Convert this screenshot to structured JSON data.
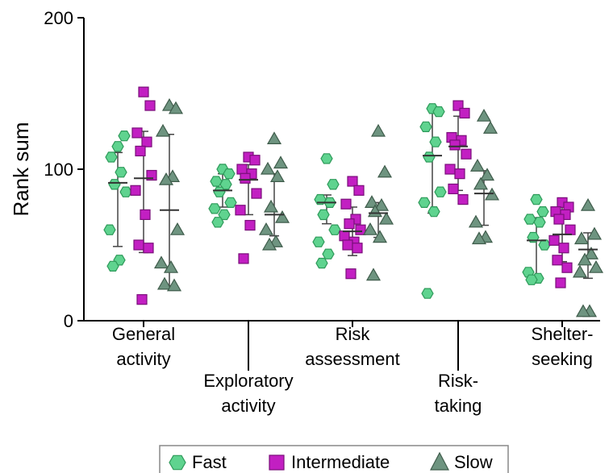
{
  "chart_data": {
    "type": "scatter",
    "ylabel": "Rank sum",
    "ylim": [
      0,
      200
    ],
    "yticks": [
      "0",
      "100",
      "200"
    ],
    "categories": [
      [
        "General",
        "activity"
      ],
      [
        "Exploratory",
        "activity"
      ],
      [
        "Risk",
        "assessment"
      ],
      [
        "Risk-",
        "taking"
      ],
      [
        "Shelter-",
        "seeking"
      ]
    ],
    "colors": {
      "Fast": {
        "fill": "#5fd38f",
        "stroke": "#2e9a5a"
      },
      "Intermediate": {
        "fill": "#c21fc2",
        "stroke": "#7a0f7a"
      },
      "Slow": {
        "fill": "#6e9480",
        "stroke": "#3f5c4b"
      }
    },
    "series": [
      {
        "name": "Fast",
        "marker": "hexagon",
        "points": [
          [
            115,
            122,
            108,
            98,
            90,
            85,
            60,
            40,
            36
          ],
          [
            100,
            97,
            92,
            90,
            85,
            78,
            74,
            70,
            65
          ],
          [
            107,
            90,
            80,
            78,
            70,
            60,
            52,
            44,
            38
          ],
          [
            140,
            138,
            128,
            118,
            108,
            85,
            78,
            72,
            18
          ],
          [
            80,
            72,
            67,
            65,
            55,
            50,
            32,
            28,
            27
          ]
        ],
        "mean": [
          91,
          86,
          78,
          109,
          53
        ],
        "err": [
          [
            49,
            111
          ],
          [
            75,
            97
          ],
          [
            64,
            83
          ],
          [
            71,
            140
          ],
          [
            27,
            68
          ]
        ]
      },
      {
        "name": "Intermediate",
        "marker": "square",
        "points": [
          [
            151,
            142,
            124,
            118,
            112,
            96,
            86,
            70,
            50,
            48,
            14
          ],
          [
            108,
            106,
            100,
            97,
            94,
            84,
            73,
            63,
            41
          ],
          [
            92,
            86,
            77,
            67,
            64,
            60,
            56,
            52,
            50,
            48,
            31
          ],
          [
            142,
            137,
            121,
            119,
            116,
            110,
            100,
            97,
            87,
            80
          ],
          [
            78,
            75,
            72,
            70,
            67,
            60,
            53,
            48,
            40,
            35,
            25
          ]
        ],
        "mean": [
          94,
          93,
          59,
          115,
          57
        ],
        "err": [
          [
            45,
            125
          ],
          [
            70,
            103
          ],
          [
            43,
            75
          ],
          [
            86,
            135
          ],
          [
            39,
            76
          ]
        ]
      },
      {
        "name": "Slow",
        "marker": "triangle",
        "points": [
          [
            142,
            140,
            125,
            95,
            93,
            60,
            38,
            35,
            24,
            23
          ],
          [
            120,
            104,
            100,
            95,
            75,
            68,
            60,
            52,
            50
          ],
          [
            125,
            98,
            78,
            76,
            72,
            67,
            60,
            55,
            30
          ],
          [
            135,
            127,
            102,
            96,
            90,
            83,
            65,
            55,
            54
          ],
          [
            76,
            57,
            54,
            44,
            40,
            35,
            32,
            6,
            6
          ]
        ],
        "mean": [
          73,
          70,
          71,
          84,
          47
        ],
        "err": [
          [
            23,
            123
          ],
          [
            56,
            97
          ],
          [
            55,
            78
          ],
          [
            63,
            99
          ],
          [
            28,
            58
          ]
        ]
      }
    ],
    "legend": {
      "placement": "bottom-center",
      "entries": [
        "Fast",
        "Intermediate",
        "Slow"
      ]
    }
  }
}
